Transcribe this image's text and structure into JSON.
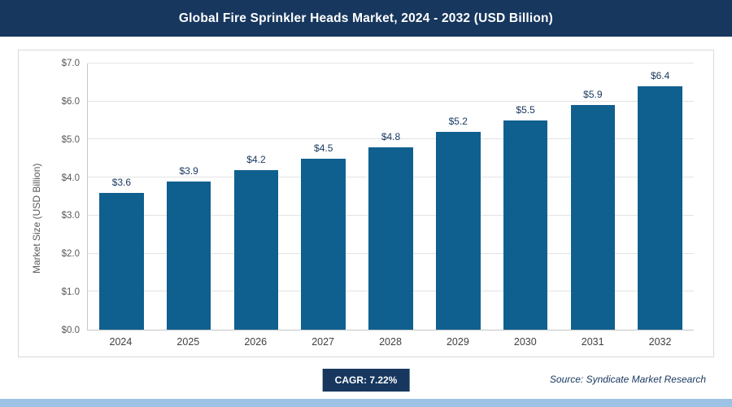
{
  "header": {
    "title": "Global Fire Sprinkler Heads Market, 2024 - 2032 (USD Billion)"
  },
  "chart_data": {
    "type": "bar",
    "title": "Global Fire Sprinkler Heads Market, 2024 - 2032 (USD Billion)",
    "categories": [
      "2024",
      "2025",
      "2026",
      "2027",
      "2028",
      "2029",
      "2030",
      "2031",
      "2032"
    ],
    "values": [
      3.6,
      3.9,
      4.2,
      4.5,
      4.8,
      5.2,
      5.5,
      5.9,
      6.4
    ],
    "data_labels": [
      "$3.6",
      "$3.9",
      "$4.2",
      "$4.5",
      "$4.8",
      "$5.2",
      "$5.5",
      "$5.9",
      "$6.4"
    ],
    "xlabel": "",
    "ylabel": "Market Size (USD Billion)",
    "ylim": [
      0,
      7
    ],
    "ytick_step": 1.0,
    "ytick_labels": [
      "$0.0",
      "$1.0",
      "$2.0",
      "$3.0",
      "$4.0",
      "$5.0",
      "$6.0",
      "$7.0"
    ],
    "grid": "horizontal",
    "legend": "none",
    "bar_color": "#10608f",
    "label_color": "#17375e"
  },
  "footer": {
    "cagr_label": "CAGR: 7.22%",
    "source": "Source: Syndicate Market Research"
  },
  "colors": {
    "header_bg": "#17375e",
    "bar": "#10608f",
    "bottom_strip": "#9cc2e5",
    "gridline": "#e3e3e3"
  }
}
